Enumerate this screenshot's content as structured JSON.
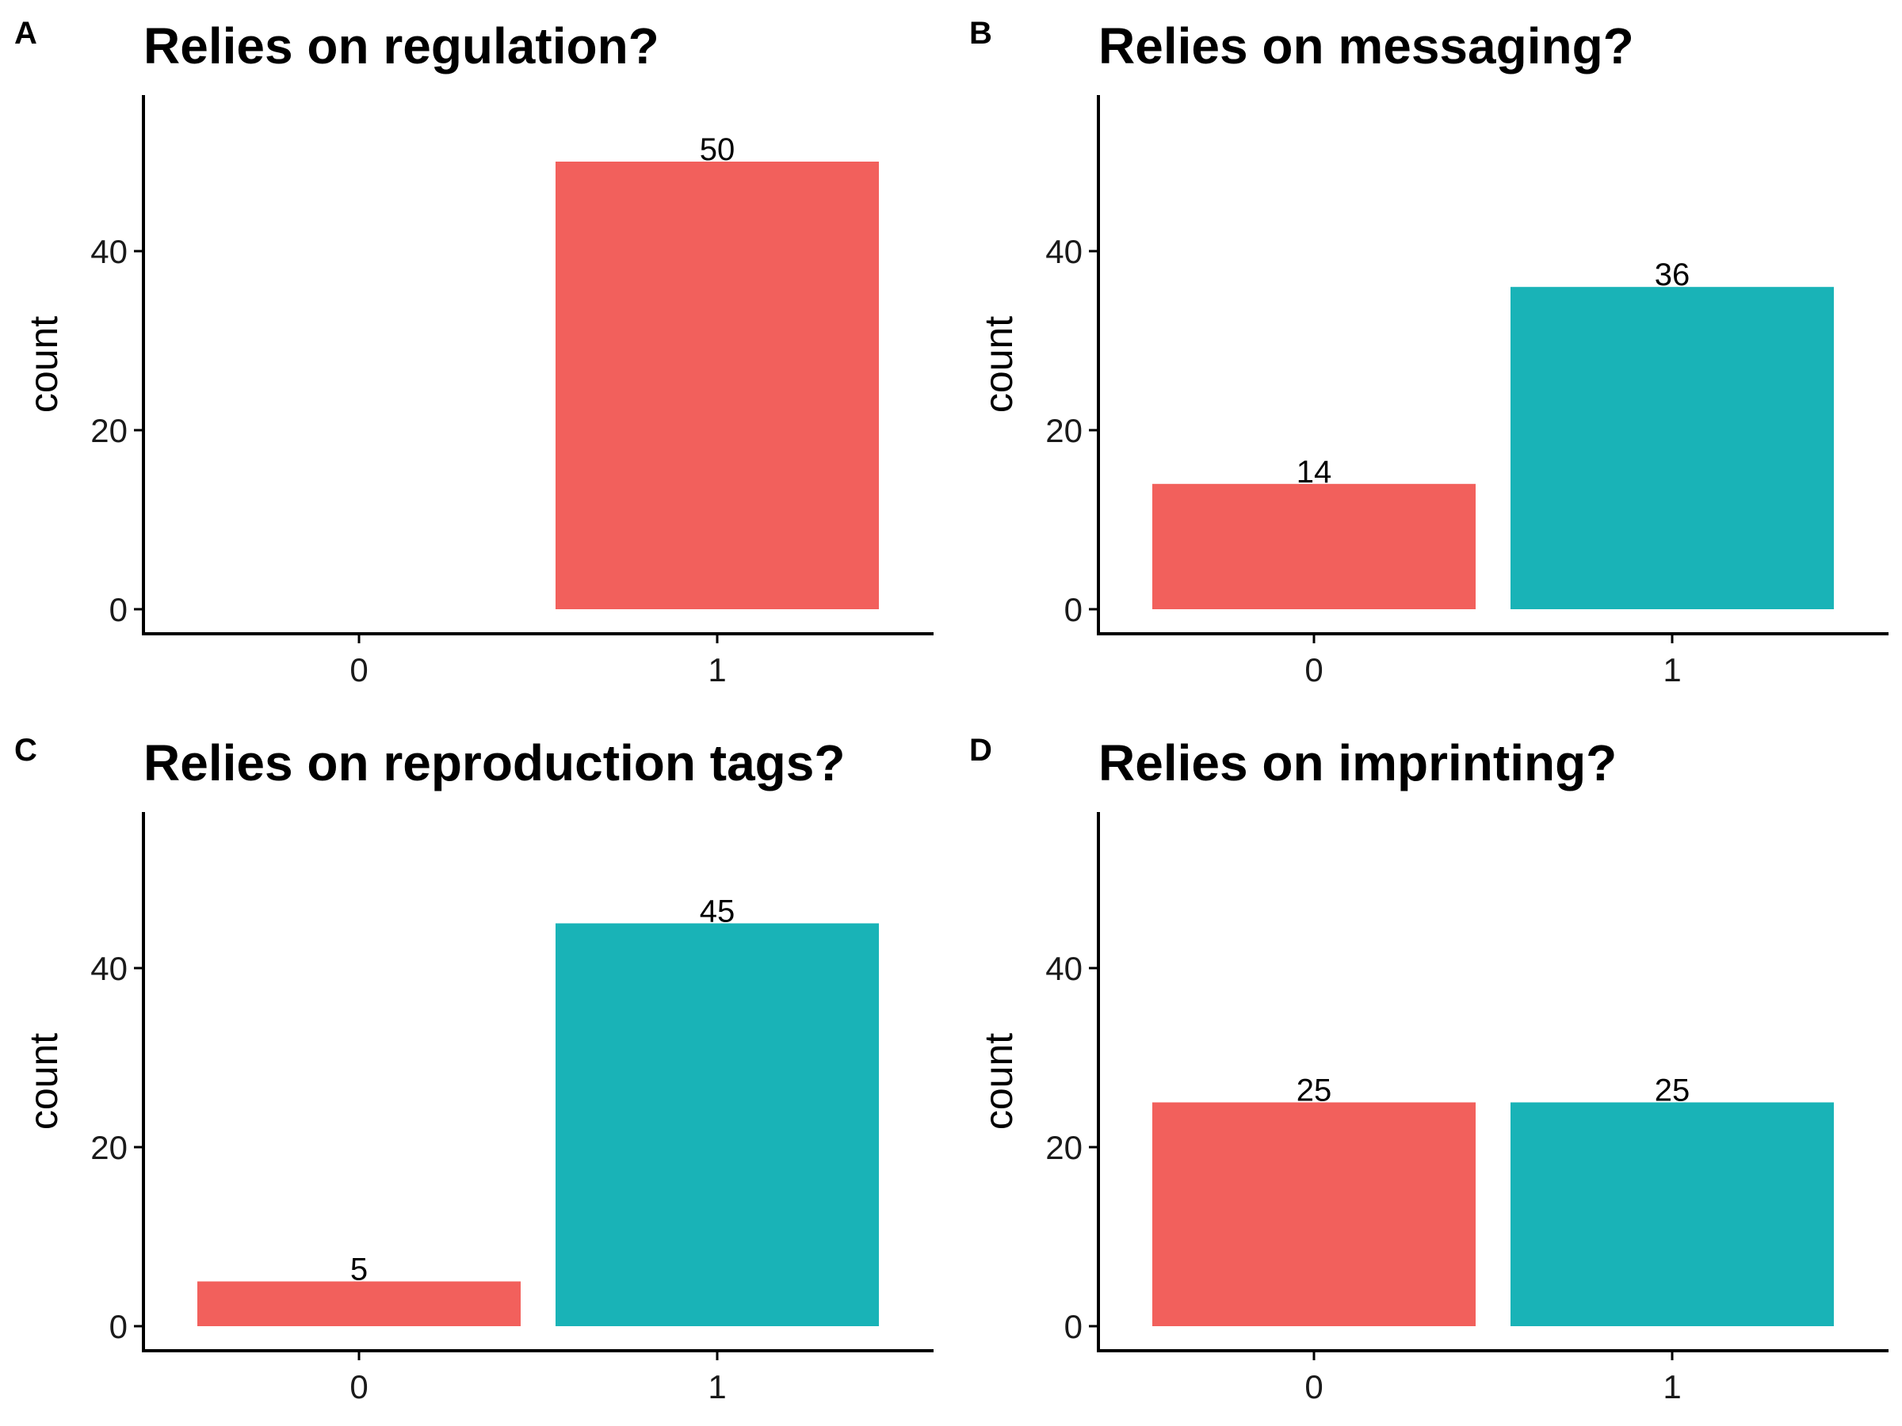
{
  "chart_data": [
    {
      "panel": "A",
      "type": "bar",
      "title": "Relies on regulation?",
      "xlabel": "",
      "ylabel": "count",
      "categories": [
        "0",
        "1"
      ],
      "values": [
        0,
        50
      ],
      "bar_colors": [
        null,
        "#F2605C"
      ],
      "data_labels": [
        "",
        "50"
      ],
      "ylim": [
        0,
        57
      ],
      "yticks": [
        0,
        20,
        40
      ],
      "grid": false
    },
    {
      "panel": "B",
      "type": "bar",
      "title": "Relies on messaging?",
      "xlabel": "",
      "ylabel": "count",
      "categories": [
        "0",
        "1"
      ],
      "values": [
        14,
        36
      ],
      "bar_colors": [
        "#F2605C",
        "#19B3B7"
      ],
      "data_labels": [
        "14",
        "36"
      ],
      "ylim": [
        0,
        57
      ],
      "yticks": [
        0,
        20,
        40
      ],
      "grid": false
    },
    {
      "panel": "C",
      "type": "bar",
      "title": "Relies on reproduction tags?",
      "xlabel": "",
      "ylabel": "count",
      "categories": [
        "0",
        "1"
      ],
      "values": [
        5,
        45
      ],
      "bar_colors": [
        "#F2605C",
        "#19B3B7"
      ],
      "data_labels": [
        "5",
        "45"
      ],
      "ylim": [
        0,
        57
      ],
      "yticks": [
        0,
        20,
        40
      ],
      "grid": false
    },
    {
      "panel": "D",
      "type": "bar",
      "title": "Relies on imprinting?",
      "xlabel": "",
      "ylabel": "count",
      "categories": [
        "0",
        "1"
      ],
      "values": [
        25,
        25
      ],
      "bar_colors": [
        "#F2605C",
        "#19B3B7"
      ],
      "data_labels": [
        "25",
        "25"
      ],
      "ylim": [
        0,
        57
      ],
      "yticks": [
        0,
        20,
        40
      ],
      "grid": false
    }
  ]
}
